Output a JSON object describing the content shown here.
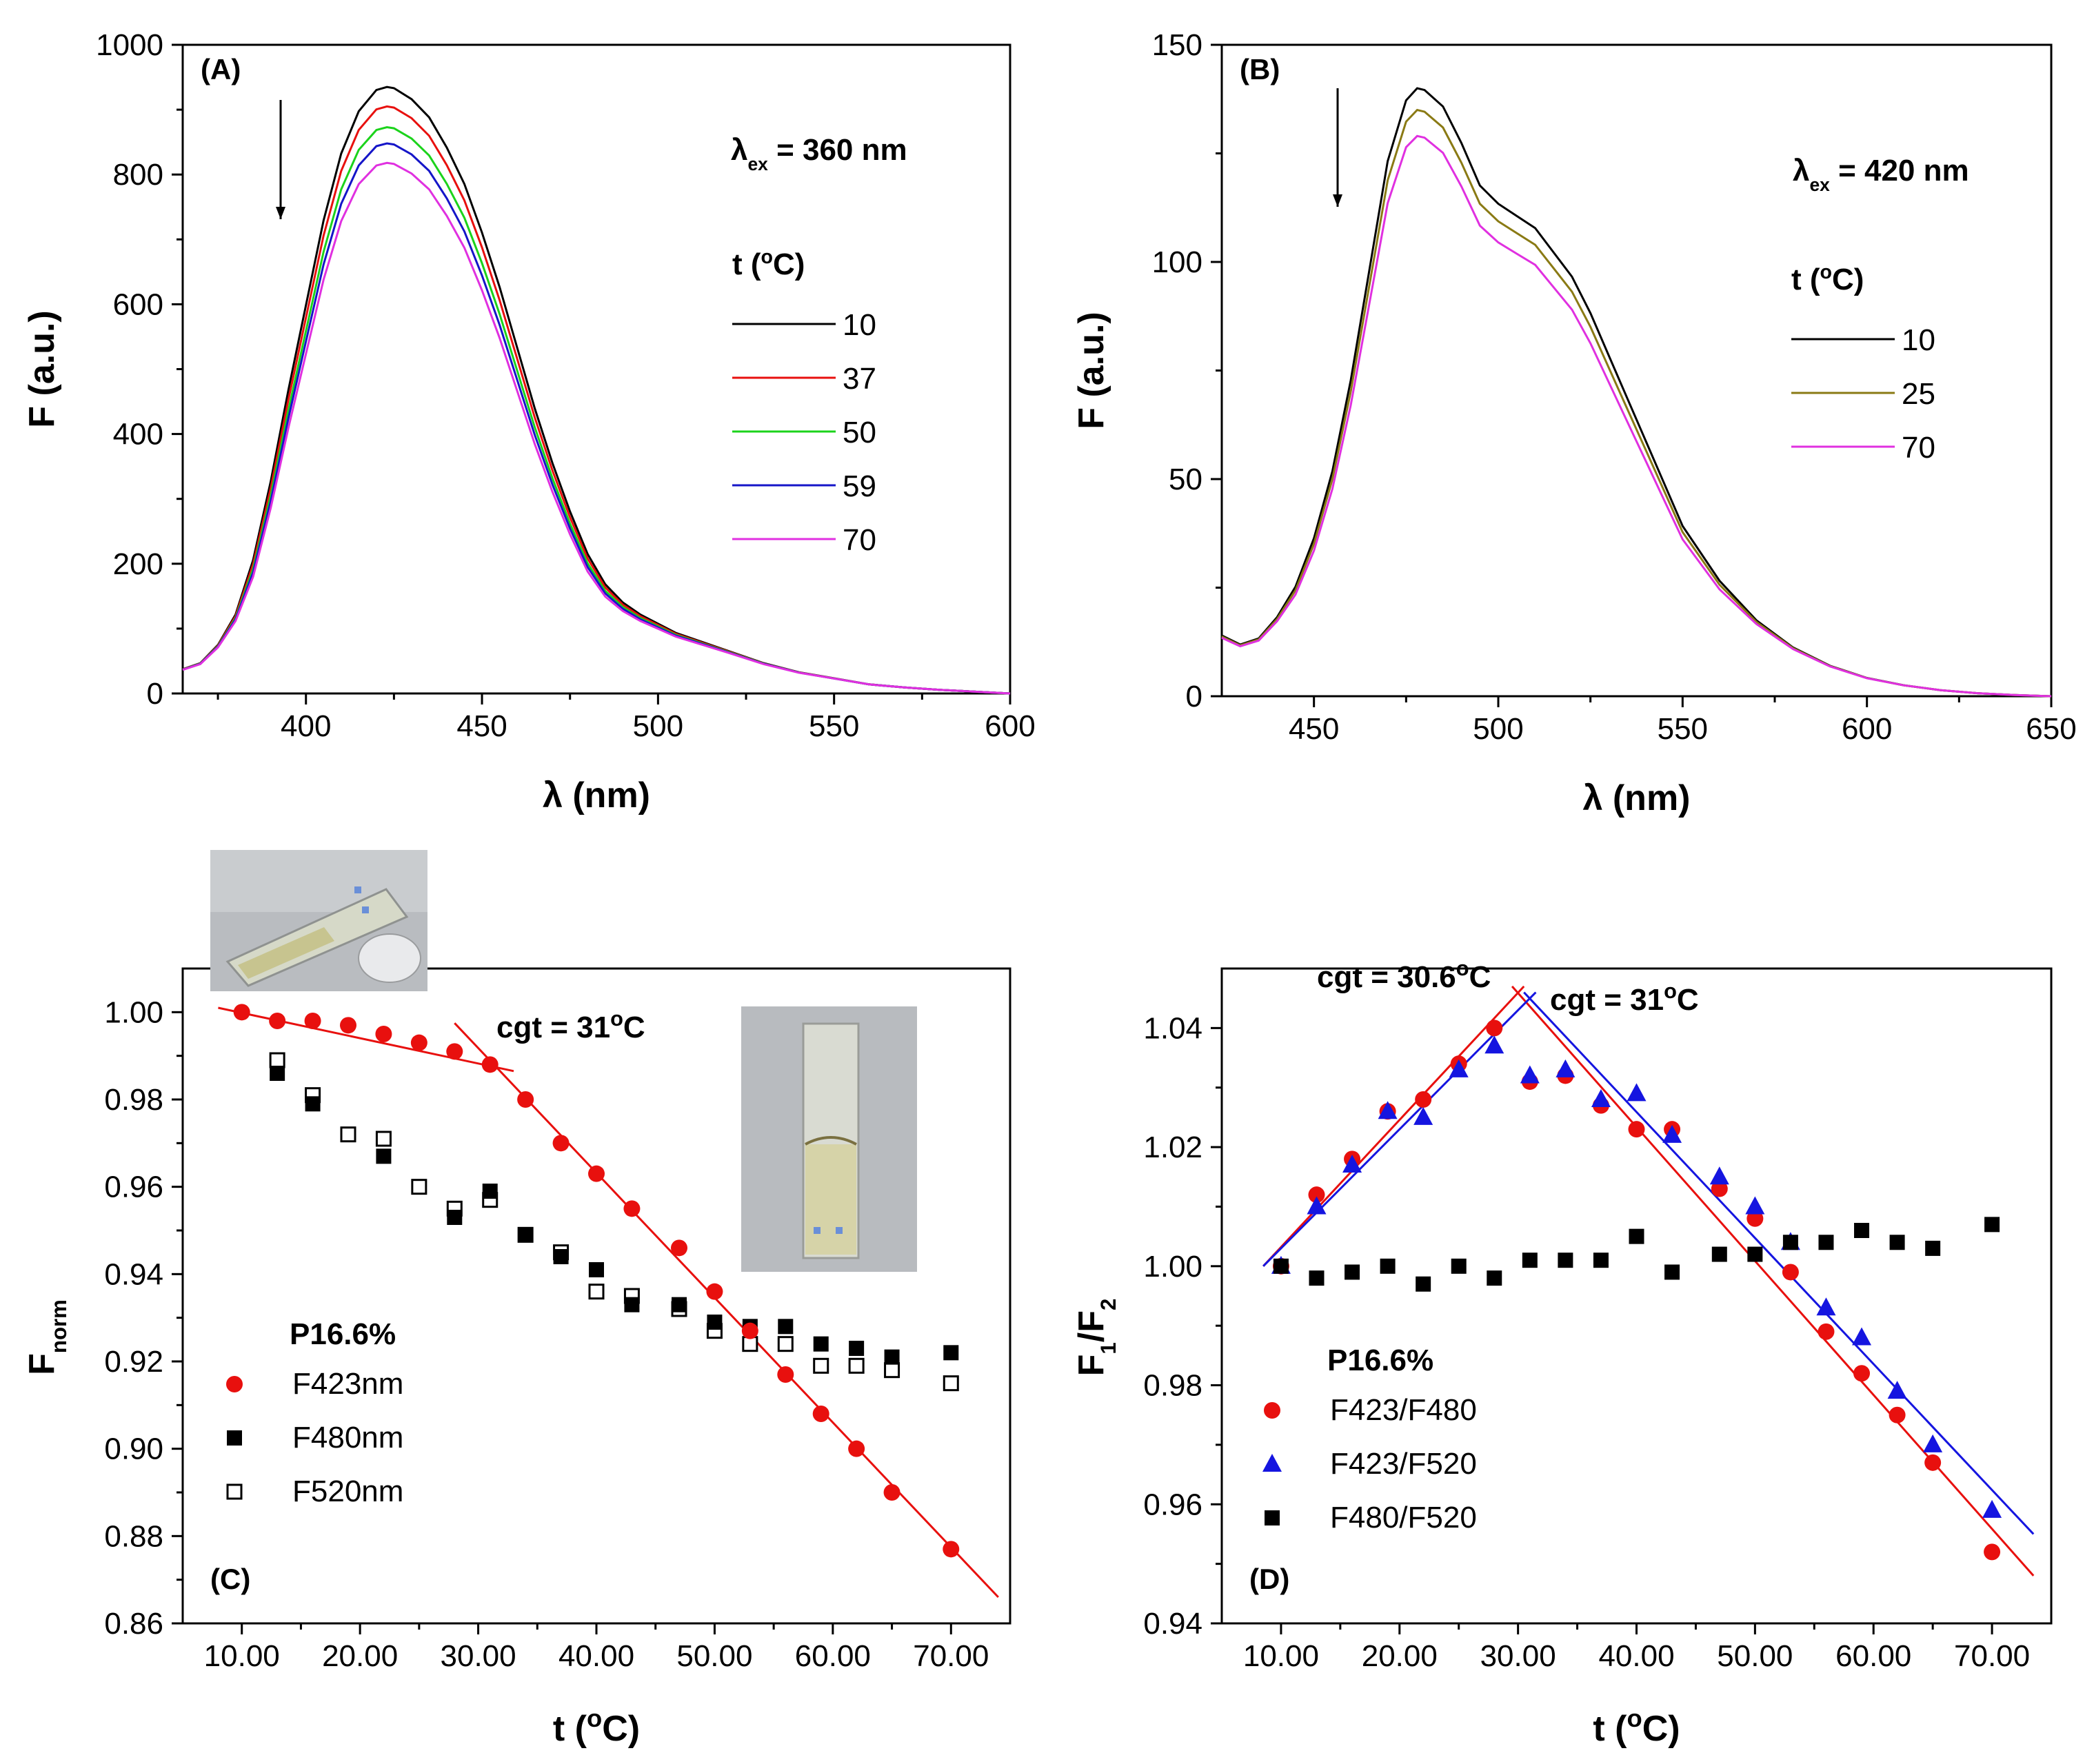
{
  "chart_data": [
    {
      "id": "A",
      "type": "line",
      "panel_label": "(A)",
      "xlabel": "λ (nm)",
      "ylabel": "F (a.u.)",
      "xlim": [
        365,
        600
      ],
      "ylim": [
        0,
        1000
      ],
      "xticks": [
        400,
        450,
        500,
        550,
        600
      ],
      "yticks": [
        0,
        200,
        400,
        600,
        800,
        1000
      ],
      "excitation": {
        "symbol": "λ",
        "sub": "ex",
        "rest": "= 360 nm"
      },
      "legend_title": {
        "pre": "t (",
        "sup": "o",
        "post": "C)"
      },
      "arrow": "down",
      "series": [
        {
          "name": "10",
          "color": "#000000",
          "peak": 935
        },
        {
          "name": "37",
          "color": "#e8100e",
          "peak": 905
        },
        {
          "name": "50",
          "color": "#1bd31b",
          "peak": 873
        },
        {
          "name": "59",
          "color": "#1515c8",
          "peak": 848
        },
        {
          "name": "70",
          "color": "#e030e0",
          "peak": 818
        }
      ],
      "shape": {
        "x": [
          365,
          370,
          375,
          380,
          385,
          390,
          395,
          400,
          405,
          410,
          415,
          420,
          423,
          425,
          430,
          435,
          440,
          445,
          450,
          455,
          460,
          465,
          470,
          475,
          480,
          485,
          490,
          495,
          500,
          505,
          510,
          520,
          530,
          540,
          550,
          560,
          570,
          580,
          590,
          600
        ],
        "y": [
          0.04,
          0.05,
          0.08,
          0.13,
          0.22,
          0.35,
          0.5,
          0.64,
          0.78,
          0.89,
          0.96,
          0.995,
          1.0,
          0.998,
          0.98,
          0.95,
          0.9,
          0.84,
          0.76,
          0.67,
          0.57,
          0.47,
          0.38,
          0.3,
          0.23,
          0.18,
          0.15,
          0.13,
          0.115,
          0.1,
          0.09,
          0.07,
          0.05,
          0.035,
          0.025,
          0.015,
          0.01,
          0.006,
          0.003,
          0.0
        ]
      }
    },
    {
      "id": "B",
      "type": "line",
      "panel_label": "(B)",
      "xlabel": "λ (nm)",
      "ylabel": "F (a.u.)",
      "xlim": [
        425,
        650
      ],
      "ylim": [
        0,
        150
      ],
      "xticks": [
        450,
        500,
        550,
        600,
        650
      ],
      "yticks": [
        0,
        50,
        100,
        150
      ],
      "excitation": {
        "symbol": "λ",
        "sub": "ex",
        "rest": "= 420 nm"
      },
      "legend_title": {
        "pre": "t (",
        "sup": "o",
        "post": "C)"
      },
      "arrow": "down",
      "series": [
        {
          "name": "10",
          "color": "#000000",
          "peak": 140
        },
        {
          "name": "25",
          "color": "#8a7a14",
          "peak": 135
        },
        {
          "name": "70",
          "color": "#e030e0",
          "peak": 129
        }
      ],
      "shape": {
        "x": [
          425,
          430,
          435,
          440,
          445,
          450,
          455,
          460,
          465,
          470,
          475,
          478,
          480,
          485,
          490,
          495,
          500,
          505,
          510,
          515,
          520,
          525,
          530,
          535,
          540,
          545,
          550,
          560,
          570,
          580,
          590,
          600,
          610,
          620,
          630,
          640,
          650
        ],
        "y": [
          0.1,
          0.085,
          0.095,
          0.13,
          0.18,
          0.26,
          0.37,
          0.52,
          0.7,
          0.88,
          0.98,
          1.0,
          0.997,
          0.97,
          0.91,
          0.84,
          0.81,
          0.79,
          0.77,
          0.73,
          0.69,
          0.63,
          0.56,
          0.49,
          0.42,
          0.35,
          0.28,
          0.19,
          0.125,
          0.08,
          0.05,
          0.03,
          0.018,
          0.01,
          0.005,
          0.002,
          0.0
        ]
      }
    },
    {
      "id": "C",
      "type": "scatter",
      "panel_label": "(C)",
      "xlabel": {
        "pre": "t (",
        "sup": "o",
        "post": "C)"
      },
      "ylabel": {
        "main": "F",
        "sub": "norm"
      },
      "xlim": [
        5,
        75
      ],
      "ylim": [
        0.86,
        1.01
      ],
      "xticks": [
        10,
        20,
        30,
        40,
        50,
        60,
        70
      ],
      "yticks": [
        0.86,
        0.88,
        0.9,
        0.92,
        0.94,
        0.96,
        0.98,
        1.0
      ],
      "legend_title": "P16.6%",
      "series": [
        {
          "name": "F423nm",
          "marker": "circle",
          "color": "#e8100e",
          "x": [
            10,
            13,
            16,
            19,
            22,
            25,
            28,
            31,
            34,
            37,
            40,
            43,
            47,
            50,
            53,
            56,
            59,
            62,
            65,
            70
          ],
          "y": [
            1.0,
            0.998,
            0.998,
            0.997,
            0.995,
            0.993,
            0.991,
            0.988,
            0.98,
            0.97,
            0.963,
            0.955,
            0.946,
            0.936,
            0.927,
            0.917,
            0.908,
            0.9,
            0.89,
            0.877
          ]
        },
        {
          "name": "F480nm",
          "marker": "square",
          "color": "#000000",
          "x": [
            13,
            16,
            22,
            28,
            31,
            34,
            37,
            40,
            43,
            47,
            50,
            53,
            56,
            59,
            62,
            65,
            70
          ],
          "y": [
            0.986,
            0.979,
            0.967,
            0.953,
            0.959,
            0.949,
            0.944,
            0.941,
            0.933,
            0.933,
            0.929,
            0.928,
            0.928,
            0.924,
            0.923,
            0.921,
            0.922
          ]
        },
        {
          "name": "F520nm",
          "marker": "open-square",
          "color": "#000000",
          "x": [
            13,
            16,
            19,
            22,
            25,
            28,
            31,
            34,
            37,
            40,
            43,
            47,
            50,
            53,
            56,
            59,
            62,
            65,
            70
          ],
          "y": [
            0.989,
            0.981,
            0.972,
            0.971,
            0.96,
            0.955,
            0.957,
            0.949,
            0.945,
            0.936,
            0.935,
            0.932,
            0.927,
            0.924,
            0.924,
            0.919,
            0.919,
            0.918,
            0.915
          ]
        }
      ],
      "fit_lines": [
        {
          "x": [
            8,
            33
          ],
          "y": [
            1.001,
            0.9865
          ],
          "color": "#e8100e"
        },
        {
          "x": [
            28,
            74
          ],
          "y": [
            0.9975,
            0.866
          ],
          "color": "#e8100e"
        }
      ],
      "annotations": [
        {
          "pre": "cgt = 31",
          "sup": "o",
          "post": "C",
          "color": "#e8100e"
        }
      ]
    },
    {
      "id": "D",
      "type": "scatter",
      "panel_label": "(D)",
      "xlabel": {
        "pre": "t (",
        "sup": "o",
        "post": "C)"
      },
      "ylabel": {
        "a": "F",
        "s1": "1",
        "b": "/F",
        "s2": "2"
      },
      "xlim": [
        5,
        75
      ],
      "ylim": [
        0.94,
        1.05
      ],
      "xticks": [
        10,
        20,
        30,
        40,
        50,
        60,
        70
      ],
      "yticks": [
        0.94,
        0.96,
        0.98,
        1.0,
        1.02,
        1.04
      ],
      "legend_title": "P16.6%",
      "series": [
        {
          "name": "F423/F480",
          "marker": "circle",
          "color": "#e8100e",
          "x": [
            10,
            13,
            16,
            19,
            22,
            25,
            28,
            31,
            34,
            37,
            40,
            43,
            47,
            50,
            53,
            56,
            59,
            62,
            65,
            70
          ],
          "y": [
            1.0,
            1.012,
            1.018,
            1.026,
            1.028,
            1.034,
            1.04,
            1.031,
            1.032,
            1.027,
            1.023,
            1.023,
            1.013,
            1.008,
            0.999,
            0.989,
            0.982,
            0.975,
            0.967,
            0.952
          ]
        },
        {
          "name": "F423/F520",
          "marker": "triangle",
          "color": "#1515e0",
          "x": [
            10,
            13,
            16,
            19,
            22,
            25,
            28,
            31,
            34,
            37,
            40,
            43,
            47,
            50,
            53,
            56,
            59,
            62,
            65,
            70
          ],
          "y": [
            1.0,
            1.01,
            1.017,
            1.026,
            1.025,
            1.033,
            1.037,
            1.032,
            1.033,
            1.028,
            1.029,
            1.022,
            1.015,
            1.01,
            1.004,
            0.993,
            0.988,
            0.979,
            0.97,
            0.959
          ]
        },
        {
          "name": "F480/F520",
          "marker": "square",
          "color": "#000000",
          "x": [
            10,
            13,
            16,
            19,
            22,
            25,
            28,
            31,
            34,
            37,
            40,
            43,
            47,
            50,
            53,
            56,
            59,
            62,
            65,
            70
          ],
          "y": [
            1.0,
            0.998,
            0.999,
            1.0,
            0.997,
            1.0,
            0.998,
            1.001,
            1.001,
            1.001,
            1.005,
            0.999,
            1.002,
            1.002,
            1.004,
            1.004,
            1.006,
            1.004,
            1.003,
            1.007
          ]
        }
      ],
      "fit_lines": [
        {
          "x": [
            8.5,
            30.5
          ],
          "y": [
            1.0,
            1.047
          ],
          "color": "#e8100e"
        },
        {
          "x": [
            29.5,
            73.5
          ],
          "y": [
            1.047,
            0.948
          ],
          "color": "#e8100e"
        },
        {
          "x": [
            8.5,
            31.5
          ],
          "y": [
            1.0,
            1.046
          ],
          "color": "#1515e0"
        },
        {
          "x": [
            30.5,
            73.5
          ],
          "y": [
            1.046,
            0.955
          ],
          "color": "#1515e0"
        }
      ],
      "annotations": [
        {
          "pre": "cgt = 30.6",
          "sup": "o",
          "post": "C",
          "color": "#e8100e"
        },
        {
          "pre": "cgt = 31",
          "sup": "o",
          "post": "C",
          "color": "#1515e0"
        }
      ]
    }
  ]
}
